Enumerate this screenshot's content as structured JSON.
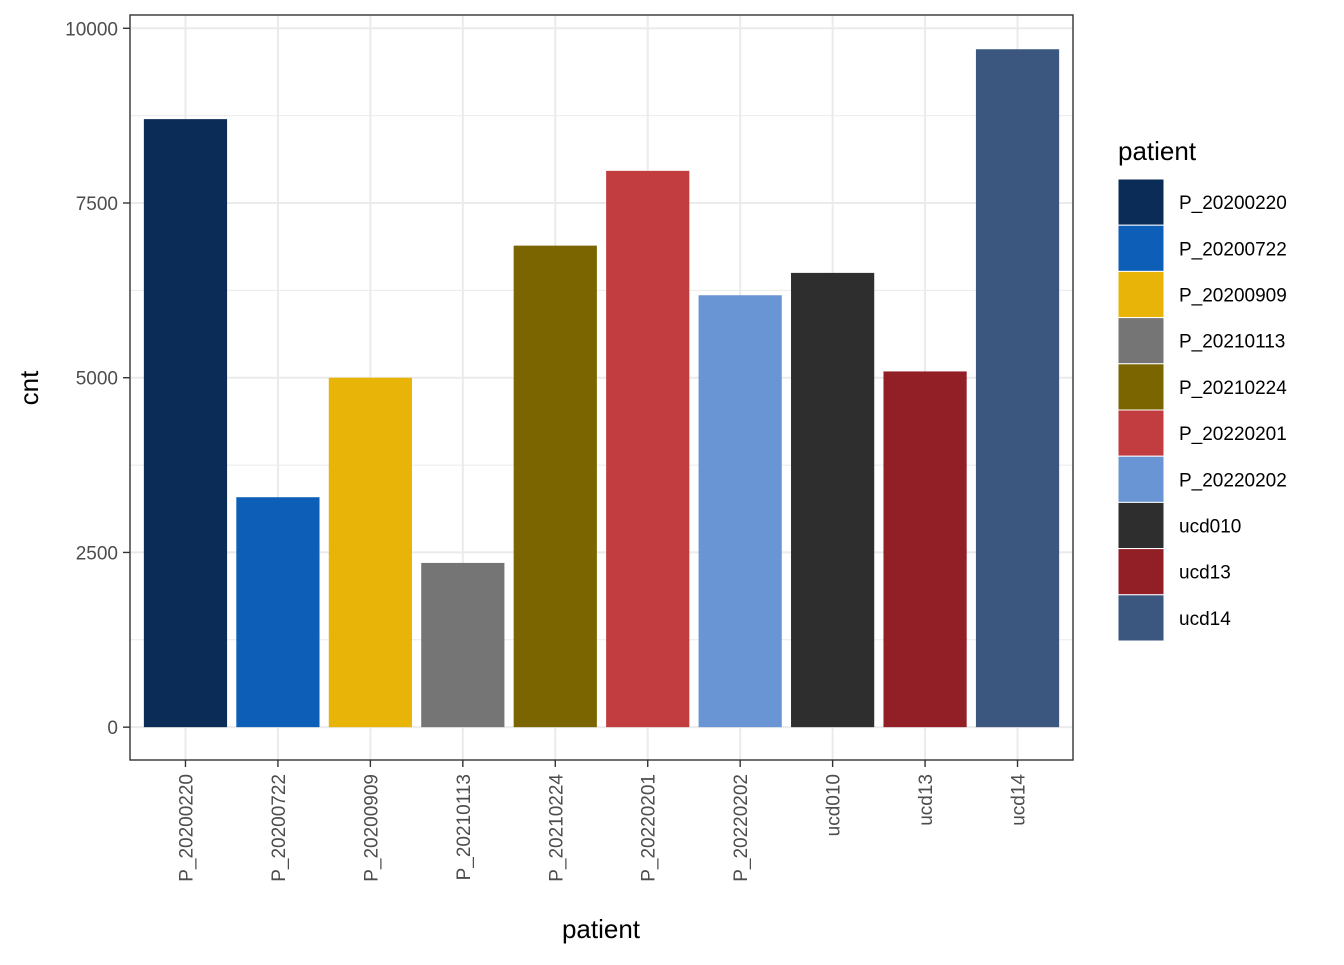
{
  "chart_data": {
    "type": "bar",
    "xlabel": "patient",
    "ylabel": "cnt",
    "categories": [
      "P_20200220",
      "P_20200722",
      "P_20200909",
      "P_20210113",
      "P_20210224",
      "P_20220201",
      "P_20220202",
      "ucd010",
      "ucd13",
      "ucd14"
    ],
    "values": [
      8700,
      3290,
      5000,
      2350,
      6890,
      7960,
      6180,
      6500,
      5090,
      9700
    ],
    "colors": [
      "#0A2C56",
      "#0D5EB7",
      "#E8B408",
      "#757575",
      "#7A6500",
      "#C13D40",
      "#6995D4",
      "#2E2E2E",
      "#921F26",
      "#3B5780"
    ],
    "ylim": [
      -470,
      10190
    ],
    "yticks": [
      0,
      2500,
      5000,
      7500,
      10000
    ],
    "grid": true,
    "legend": {
      "title": "patient",
      "position": "right",
      "entries": [
        "P_20200220",
        "P_20200722",
        "P_20200909",
        "P_20210113",
        "P_20210224",
        "P_20220201",
        "P_20220202",
        "ucd010",
        "ucd13",
        "ucd14"
      ]
    }
  }
}
